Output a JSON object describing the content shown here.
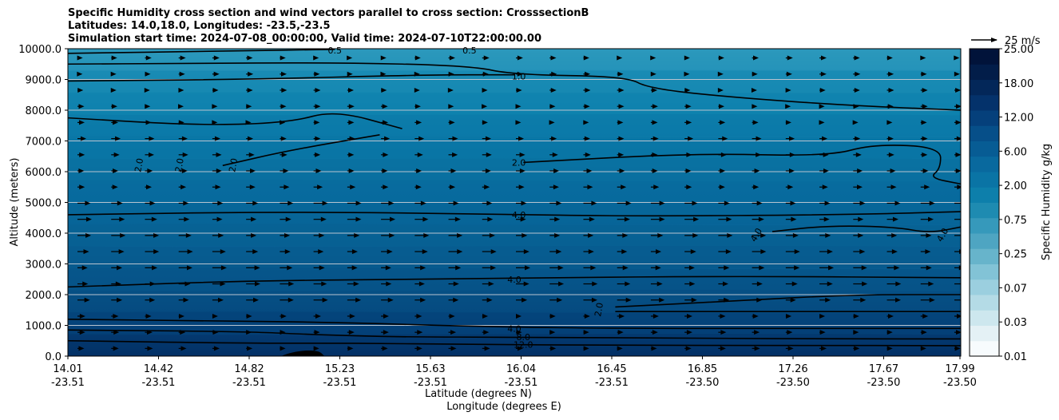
{
  "chart_data": {
    "type": "contourf",
    "title_lines": [
      "Specific Humidity cross section and wind vectors parallel to cross section: CrosssectionB",
      "Latitudes: 14.0,18.0, Longitudes: -23.5,-23.5",
      "Simulation start time: 2024-07-08_00:00:00, Valid time: 2024-07-10T22:00:00.00"
    ],
    "ylabel": "Altitude (meters)",
    "xlabel_lat": "Latitude (degrees N)",
    "xlabel_lon": "Longitude (degrees E)",
    "ylim": [
      0,
      10000
    ],
    "y_ticks": [
      0,
      1000,
      2000,
      3000,
      4000,
      5000,
      6000,
      7000,
      8000,
      9000,
      10000
    ],
    "y_tick_labels": [
      "0.0",
      "1000.0",
      "2000.0",
      "3000.0",
      "4000.0",
      "5000.0",
      "6000.0",
      "7000.0",
      "8000.0",
      "9000.0",
      "10000.0"
    ],
    "x_ticks_lat": [
      "14.01",
      "14.42",
      "14.82",
      "15.23",
      "15.63",
      "16.04",
      "16.45",
      "16.85",
      "17.26",
      "17.67",
      "17.99"
    ],
    "x_ticks_lon": [
      "-23.51",
      "-23.51",
      "-23.51",
      "-23.51",
      "-23.51",
      "-23.51",
      "-23.51",
      "-23.50",
      "-23.50",
      "-23.50",
      "-23.50"
    ],
    "x_range": [
      14.01,
      17.99
    ],
    "colorbar": {
      "label": "Specific Humidity g/kg",
      "levels": [
        "0.01",
        "0.03",
        "0.07",
        "0.25",
        "0.75",
        "2.00",
        "6.00",
        "12.00",
        "18.00",
        "25.00"
      ],
      "colors": [
        "#f7fbfd",
        "#e4f1f5",
        "#cde7ee",
        "#b4dbe6",
        "#9bcfdf",
        "#82c3d6",
        "#67b4cb",
        "#4ea5c2",
        "#3699bb",
        "#1e8bb1",
        "#0d7fab",
        "#0a74a5",
        "#09699e",
        "#075c94",
        "#064f89",
        "#05407b",
        "#04326b",
        "#032759",
        "#021d49",
        "#01133a"
      ]
    },
    "quiver_key": "25 m/s",
    "contour_labels": [
      {
        "text": "0.5",
        "x": 15.2,
        "y": 9950
      },
      {
        "text": "0.5",
        "x": 15.8,
        "y": 9950
      },
      {
        "text": "1.0",
        "x": 16.02,
        "y": 9100
      },
      {
        "text": "2.0",
        "x": 14.34,
        "y": 6300
      },
      {
        "text": "2.0",
        "x": 14.52,
        "y": 6300
      },
      {
        "text": "2.0",
        "x": 14.76,
        "y": 6300
      },
      {
        "text": "2.0",
        "x": 16.02,
        "y": 6300
      },
      {
        "text": "4.0",
        "x": 16.02,
        "y": 4600
      },
      {
        "text": "4.0",
        "x": 17.09,
        "y": 4000
      },
      {
        "text": "4.0",
        "x": 17.92,
        "y": 4000
      },
      {
        "text": "4.0",
        "x": 16.0,
        "y": 2500
      },
      {
        "text": "2.0",
        "x": 16.39,
        "y": 1600
      },
      {
        "text": "4.0",
        "x": 16.0,
        "y": 900
      },
      {
        "text": "8.0",
        "x": 16.04,
        "y": 620
      },
      {
        "text": "12.0",
        "x": 16.04,
        "y": 380
      }
    ],
    "contour_lines": [
      {
        "level": "0.5",
        "points": [
          [
            14.01,
            9850
          ],
          [
            14.7,
            9920
          ],
          [
            15.2,
            9980
          ]
        ]
      },
      {
        "level": "1.0",
        "points": [
          [
            14.01,
            9500
          ],
          [
            14.5,
            9520
          ],
          [
            15.2,
            9550
          ],
          [
            15.8,
            9450
          ],
          [
            16.0,
            9150
          ],
          [
            16.5,
            9100
          ],
          [
            16.6,
            8700
          ],
          [
            17.0,
            8400
          ],
          [
            17.5,
            8150
          ],
          [
            17.99,
            8000
          ]
        ]
      },
      {
        "level": "1.0",
        "points": [
          [
            14.01,
            8950
          ],
          [
            14.8,
            9000
          ],
          [
            15.6,
            9150
          ],
          [
            16.0,
            9150
          ]
        ]
      },
      {
        "level": "2.0",
        "points": [
          [
            14.01,
            7750
          ],
          [
            14.6,
            7500
          ],
          [
            15.0,
            7600
          ],
          [
            15.2,
            8000
          ],
          [
            15.5,
            7400
          ]
        ]
      },
      {
        "level": "2.0",
        "points": [
          [
            14.7,
            6200
          ],
          [
            15.0,
            6700
          ],
          [
            15.4,
            7200
          ]
        ]
      },
      {
        "level": "2.0",
        "points": [
          [
            16.04,
            6300
          ],
          [
            16.8,
            6600
          ],
          [
            17.4,
            6500
          ],
          [
            17.6,
            6900
          ],
          [
            17.9,
            6800
          ],
          [
            17.9,
            6100
          ],
          [
            17.85,
            5800
          ],
          [
            17.99,
            5600
          ]
        ]
      },
      {
        "level": "4.0",
        "points": [
          [
            14.01,
            4600
          ],
          [
            15.0,
            4700
          ],
          [
            15.9,
            4620
          ],
          [
            16.5,
            4550
          ],
          [
            17.5,
            4600
          ],
          [
            17.99,
            4700
          ]
        ]
      },
      {
        "level": "4.0",
        "points": [
          [
            17.15,
            4050
          ],
          [
            17.4,
            4250
          ],
          [
            17.7,
            4200
          ],
          [
            17.85,
            4000
          ],
          [
            17.99,
            4200
          ]
        ]
      },
      {
        "level": "4.0",
        "points": [
          [
            14.01,
            2250
          ],
          [
            14.8,
            2450
          ],
          [
            15.6,
            2500
          ],
          [
            16.1,
            2550
          ],
          [
            17.0,
            2600
          ],
          [
            17.99,
            2550
          ]
        ]
      },
      {
        "level": "2.0",
        "points": [
          [
            16.45,
            1600
          ],
          [
            17.0,
            1800
          ],
          [
            17.5,
            2000
          ],
          [
            17.99,
            2000
          ]
        ]
      },
      {
        "level": "2.0",
        "points": [
          [
            16.45,
            1450
          ],
          [
            17.3,
            1450
          ],
          [
            17.99,
            1450
          ]
        ]
      },
      {
        "level": "4.0",
        "points": [
          [
            14.01,
            1200
          ],
          [
            14.6,
            1150
          ],
          [
            15.2,
            1100
          ],
          [
            15.9,
            950
          ],
          [
            16.5,
            900
          ],
          [
            17.2,
            900
          ],
          [
            17.99,
            900
          ]
        ]
      },
      {
        "level": "8.0",
        "points": [
          [
            14.01,
            850
          ],
          [
            14.8,
            800
          ],
          [
            15.1,
            700
          ],
          [
            15.5,
            620
          ],
          [
            16.0,
            620
          ],
          [
            16.8,
            580
          ],
          [
            17.5,
            560
          ],
          [
            17.99,
            560
          ]
        ]
      },
      {
        "level": "12.0",
        "points": [
          [
            14.01,
            500
          ],
          [
            14.8,
            420
          ],
          [
            15.3,
            420
          ],
          [
            15.8,
            380
          ],
          [
            16.5,
            350
          ],
          [
            17.2,
            350
          ],
          [
            17.99,
            340
          ]
        ]
      }
    ],
    "terrain": {
      "points": [
        [
          14.96,
          0
        ],
        [
          15.02,
          150
        ],
        [
          15.1,
          180
        ],
        [
          15.16,
          0
        ]
      ]
    }
  }
}
